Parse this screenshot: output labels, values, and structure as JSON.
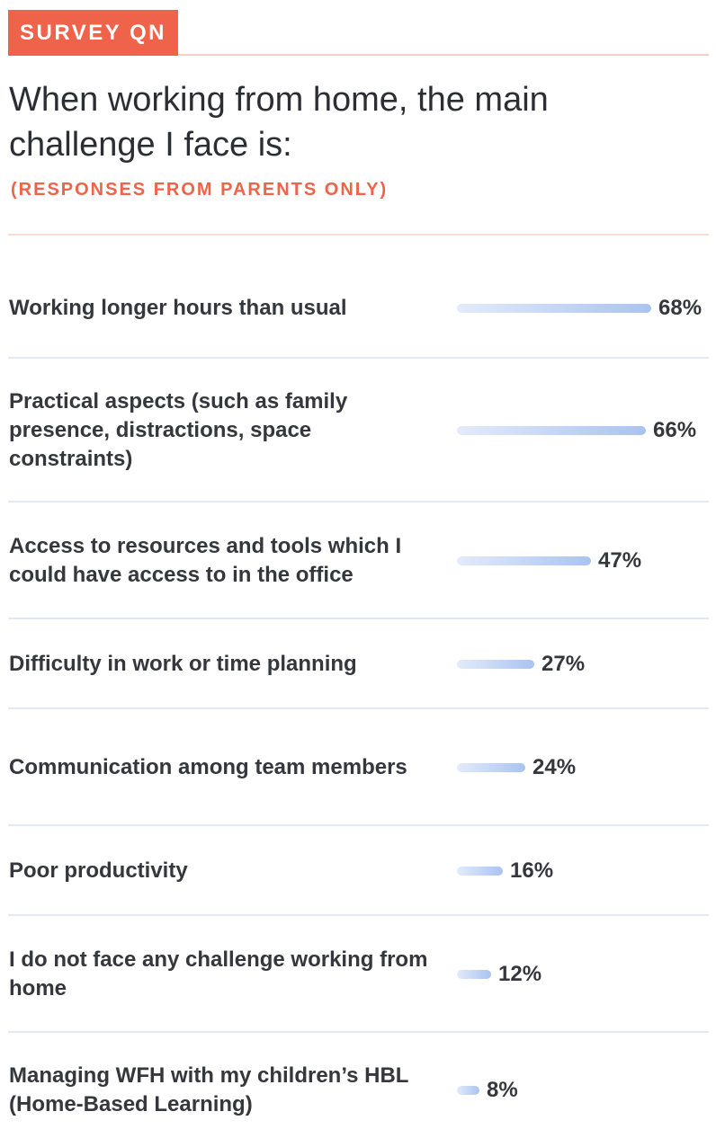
{
  "badge": "SURVEY QN",
  "chart_data": {
    "type": "bar",
    "orientation": "horizontal",
    "title": "When working from home, the main challenge I face is:",
    "subtitle": "(RESPONSES FROM PARENTS ONLY)",
    "categories": [
      "Working longer hours than usual",
      "Practical aspects (such as family presence, distractions, space constraints)",
      "Access to resources and tools which I could have access to in the office",
      "Difficulty in work or time planning",
      "Communication among team members",
      "Poor productivity",
      "I do not face any challenge working from home",
      "Managing WFH with my children’s HBL (Home-Based Learning)"
    ],
    "values": [
      68,
      66,
      47,
      27,
      24,
      16,
      12,
      8
    ],
    "value_labels": [
      "68%",
      "66%",
      "47%",
      "27%",
      "24%",
      "16%",
      "12%",
      "8%"
    ],
    "unit": "%",
    "grid": false,
    "legend": "none",
    "colors": {
      "accent": "#ee6349",
      "bar_start": "#e3ebfb",
      "bar_end": "#a9c3f1"
    }
  }
}
